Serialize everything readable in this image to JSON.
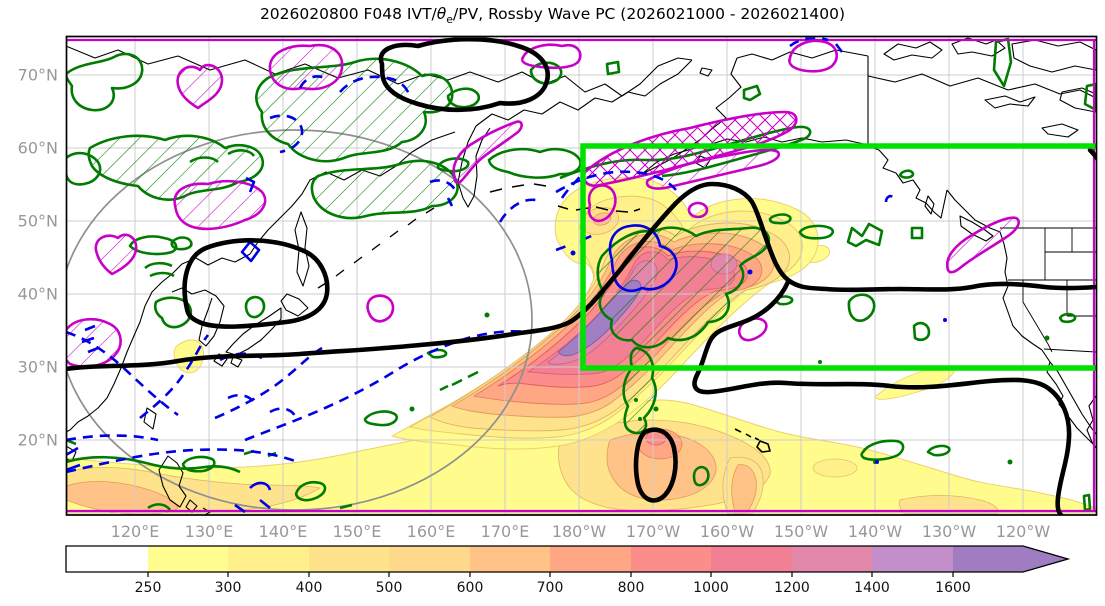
{
  "title": {
    "part1": "2026020800 F048 IVT/",
    "theta": "θ",
    "theta_sub": "e",
    "part2": "/PV, Rossby Wave PC (2026021000 - 2026021400)"
  },
  "axes": {
    "lon_ticks": [
      "120°E",
      "130°E",
      "140°E",
      "150°E",
      "160°E",
      "170°E",
      "180°W",
      "170°W",
      "160°W",
      "150°W",
      "140°W",
      "130°W",
      "120°W"
    ],
    "lat_ticks": [
      "70°N",
      "60°N",
      "50°N",
      "40°N",
      "30°N",
      "20°N"
    ]
  },
  "colorbar": {
    "tick_labels": [
      "250",
      "300",
      "400",
      "500",
      "600",
      "700",
      "800",
      "1000",
      "1200",
      "1400",
      "1600"
    ],
    "segment_colors": [
      "#ffffff",
      "#fffd8f",
      "#fff08c",
      "#ffe38c",
      "#ffd98b",
      "#ffc287",
      "#ffa684",
      "#fb8d8b",
      "#f28095",
      "#e286aa",
      "#c48ecb",
      "#9f7dc0"
    ],
    "arrow_color": "#9f7dc0"
  },
  "chart_data": {
    "type": "heatmap",
    "title": "2026020800 F048 IVT/θe/PV, Rossby Wave PC (2026021000 - 2026021400)",
    "x_tick_labels": [
      "120°E",
      "130°E",
      "140°E",
      "150°E",
      "160°E",
      "170°E",
      "180°W",
      "170°W",
      "160°W",
      "150°W",
      "140°W",
      "130°W",
      "120°W"
    ],
    "y_tick_labels": [
      "70°N",
      "60°N",
      "50°N",
      "40°N",
      "30°N",
      "20°N"
    ],
    "grid": true,
    "shading_levels": [
      250,
      300,
      400,
      500,
      600,
      700,
      800,
      1000,
      1200,
      1400,
      1600
    ],
    "shading_level_colors": [
      "#ffffff",
      "#fffd8f",
      "#fff08c",
      "#ffe38c",
      "#ffd98b",
      "#ffc287",
      "#ffa684",
      "#fb8d8b",
      "#f28095",
      "#e286aa",
      "#c48ecb",
      "#9f7dc0"
    ],
    "colorbar_extend": "max-arrow",
    "overlays": [
      {
        "name": "ivt-shading-plume",
        "description": "filled diagonal moisture plume from ~150°E/18°N to ~170°W/48°N, core exceeding 1600 (purple)",
        "colors": "yellow-orange-red-purple"
      },
      {
        "name": "tropical-shading-band",
        "description": "filled band 250-800 along southern edge of map"
      },
      {
        "name": "green-contours",
        "color": "#007c00",
        "style": "solid, some regions hatched"
      },
      {
        "name": "magenta-contours",
        "color": "#c800c8",
        "style": "solid, some regions hatched"
      },
      {
        "name": "blue-dashed-contours",
        "color": "#0000e6",
        "style": "dashed, a few solid rings"
      },
      {
        "name": "black-thick-contours",
        "color": "#000000",
        "style": "thick solid"
      },
      {
        "name": "highlight-box",
        "color": "#00e100",
        "lon_from": "180°",
        "lon_to": "map east edge",
        "lat_range": [
          "30°N",
          "60°N"
        ]
      },
      {
        "name": "gray-circle-region",
        "color": "#909090",
        "description": "large circle over western North Pacific"
      }
    ]
  },
  "colors": {
    "grid": "#cccccc",
    "tick_label": "#989898",
    "green_contour": "#007c00",
    "magenta_contour": "#c800c8",
    "blue_contour": "#0000e6",
    "black_contour": "#000000",
    "box_green": "#00e100",
    "gray_circle": "#909090"
  }
}
